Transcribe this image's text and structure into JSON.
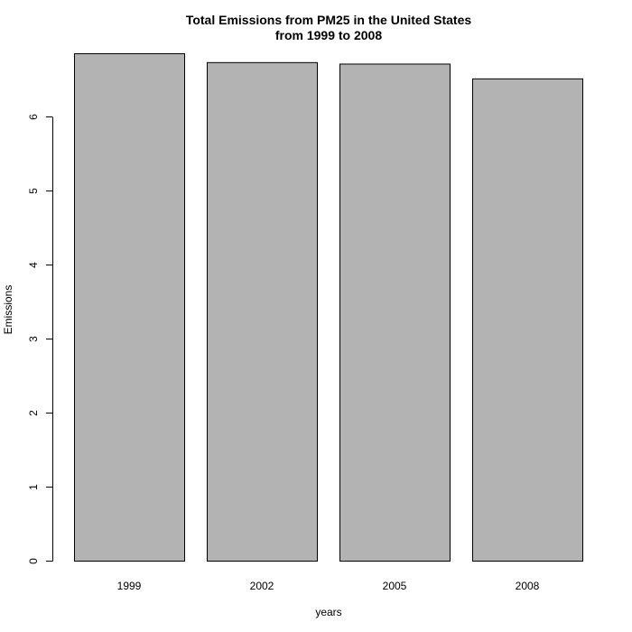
{
  "chart_data": {
    "type": "bar",
    "title": "Total Emissions from PM25 in the United States",
    "subtitle": "from 1999 to 2008",
    "xlabel": "years",
    "ylabel": "Emissions",
    "categories": [
      "1999",
      "2002",
      "2005",
      "2008"
    ],
    "values": [
      6.86,
      6.74,
      6.72,
      6.52
    ],
    "ylim": [
      0,
      6.86
    ],
    "y_ticks": [
      0,
      1,
      2,
      3,
      4,
      5,
      6
    ],
    "bar_color": "#b3b3b3",
    "grid": false
  }
}
